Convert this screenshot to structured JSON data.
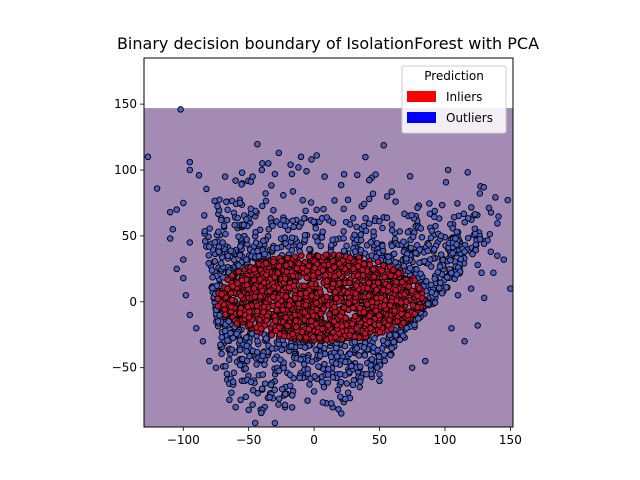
{
  "chart_data": {
    "type": "scatter",
    "title": "Binary decision boundary of IsolationForest with PCA",
    "xlabel": "",
    "ylabel": "",
    "xlim": [
      -130,
      152
    ],
    "ylim": [
      -95,
      185
    ],
    "x_ticks": [
      -100,
      -50,
      0,
      50,
      100,
      150
    ],
    "y_ticks": [
      -50,
      0,
      50,
      100,
      150
    ],
    "x_tick_labels": [
      "−100",
      "−50",
      "0",
      "50",
      "100",
      "150"
    ],
    "y_tick_labels": [
      "−50",
      "0",
      "50",
      "100",
      "150"
    ],
    "grid": false,
    "decision_region": {
      "x_range": [
        -130,
        152
      ],
      "y_range": [
        -95,
        147
      ],
      "color": "#a48bb3"
    },
    "legend": {
      "title": "Prediction",
      "placement": "upper right",
      "entries": [
        {
          "label": "Inliers",
          "color": "#ff0000"
        },
        {
          "label": "Outliers",
          "color": "#0000ff"
        }
      ]
    },
    "series": [
      {
        "name": "Inliers",
        "marker_color": "#c8102e",
        "edge_color": "#000000",
        "distribution": {
          "center": [
            5,
            3
          ],
          "radius": [
            80,
            33
          ],
          "count": 1600
        }
      },
      {
        "name": "Outliers",
        "marker_color": "#4d62c8",
        "edge_color": "#000000",
        "distribution": {
          "count": 1100
        },
        "points": [
          [
            -127,
            110
          ],
          [
            -102,
            146
          ],
          [
            -120,
            86
          ],
          [
            -95,
            106
          ],
          [
            -95,
            100
          ],
          [
            -88,
            96
          ],
          [
            -110,
            68
          ],
          [
            -105,
            70
          ],
          [
            -100,
            75
          ],
          [
            -68,
            95
          ],
          [
            -60,
            92
          ],
          [
            -55,
            98
          ],
          [
            -47,
            95
          ],
          [
            -40,
            100
          ],
          [
            -35,
            105
          ],
          [
            -27,
            113
          ],
          [
            -18,
            104
          ],
          [
            -10,
            110
          ],
          [
            2,
            111
          ],
          [
            -2,
            108
          ],
          [
            -12,
            102
          ],
          [
            -17,
            97
          ],
          [
            8,
            95
          ],
          [
            45,
            82
          ],
          [
            -30,
            97
          ],
          [
            97,
            50
          ],
          [
            108,
            48
          ],
          [
            115,
            38
          ],
          [
            125,
            28
          ],
          [
            135,
            38
          ],
          [
            140,
            35
          ],
          [
            145,
            32
          ],
          [
            150,
            10
          ],
          [
            137,
            22
          ],
          [
            128,
            22
          ],
          [
            120,
            10
          ],
          [
            130,
            3
          ],
          [
            125,
            -18
          ],
          [
            115,
            -30
          ],
          [
            105,
            -20
          ],
          [
            110,
            5
          ],
          [
            85,
            -45
          ],
          [
            75,
            -50
          ],
          [
            50,
            -55
          ],
          [
            40,
            -55
          ],
          [
            25,
            -62
          ],
          [
            50,
            -60
          ],
          [
            20,
            -55
          ],
          [
            -60,
            -80
          ],
          [
            -50,
            -82
          ],
          [
            -47,
            -78
          ],
          [
            -45,
            -92
          ],
          [
            -30,
            -92
          ],
          [
            -22,
            -70
          ],
          [
            -5,
            -75
          ],
          [
            20,
            -72
          ],
          [
            0,
            -68
          ],
          [
            -75,
            -50
          ],
          [
            -80,
            -45
          ],
          [
            -85,
            -30
          ],
          [
            -90,
            -20
          ],
          [
            -95,
            -10
          ],
          [
            -98,
            5
          ],
          [
            -100,
            18
          ],
          [
            -105,
            25
          ],
          [
            -100,
            32
          ],
          [
            -95,
            45
          ],
          [
            -108,
            55
          ],
          [
            -110,
            48
          ]
        ]
      }
    ]
  }
}
